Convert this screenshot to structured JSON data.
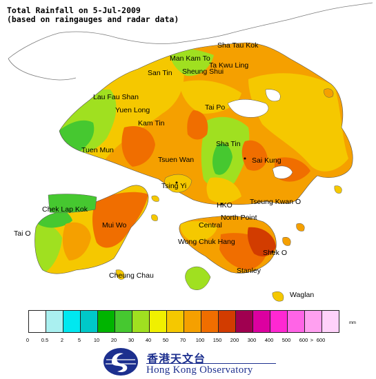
{
  "title": {
    "line1": "Total Rainfall on 5-Jul-2009",
    "line2": "(based on raingauges and radar data)"
  },
  "places": [
    {
      "id": "sha-tau-kok",
      "label": "Sha Tau Kok"
    },
    {
      "id": "man-kam-to",
      "label": "Man Kam To"
    },
    {
      "id": "ta-kwu-ling",
      "label": "Ta Kwu Ling"
    },
    {
      "id": "san-tin",
      "label": "San Tin"
    },
    {
      "id": "sheung-shui",
      "label": "Sheung Shui"
    },
    {
      "id": "lau-fau-shan",
      "label": "Lau Fau Shan"
    },
    {
      "id": "yuen-long",
      "label": "Yuen Long"
    },
    {
      "id": "tai-po",
      "label": "Tai Po"
    },
    {
      "id": "kam-tin",
      "label": "Kam Tin"
    },
    {
      "id": "sha-tin",
      "label": "Sha Tin"
    },
    {
      "id": "tuen-mun",
      "label": "Tuen Mun"
    },
    {
      "id": "sai-kung",
      "label": "Sai Kung"
    },
    {
      "id": "tsuen-wan",
      "label": "Tsuen Wan"
    },
    {
      "id": "tsing-yi",
      "label": "Tsing Yi"
    },
    {
      "id": "hko",
      "label": "HKO"
    },
    {
      "id": "tseung-kwan-o",
      "label": "Tseung Kwan O"
    },
    {
      "id": "chek-lap-kok",
      "label": "Chek Lap Kok"
    },
    {
      "id": "north-point",
      "label": "North Point"
    },
    {
      "id": "mui-wo",
      "label": "Mui Wo"
    },
    {
      "id": "central",
      "label": "Central"
    },
    {
      "id": "tai-o",
      "label": "Tai O"
    },
    {
      "id": "wong-chuk-hang",
      "label": "Wong Chuk Hang"
    },
    {
      "id": "shek-o",
      "label": "Shek O"
    },
    {
      "id": "cheung-chau",
      "label": "Cheung Chau"
    },
    {
      "id": "stanley",
      "label": "Stanley"
    },
    {
      "id": "waglan",
      "label": "Waglan"
    }
  ],
  "legend": {
    "unit": "mm",
    "colors": [
      "#ffffff",
      "#aaf0f0",
      "#00e8f0",
      "#00c8c8",
      "#00b400",
      "#46c830",
      "#a0e020",
      "#f0f000",
      "#f5c800",
      "#f5a000",
      "#f06e00",
      "#d23c00",
      "#a00050",
      "#dc00a0",
      "#ff28d2",
      "#ff64e6",
      "#ffa0f0",
      "#ffd2fa"
    ],
    "ticks": [
      "0",
      "0.5",
      "2",
      "5",
      "10",
      "20",
      "30",
      "40",
      "50",
      "70",
      "100",
      "150",
      "200",
      "300",
      "400",
      "500",
      "600",
      ">",
      "600"
    ]
  },
  "logo": {
    "chinese": "香港天文台",
    "english": "Hong Kong Observatory"
  }
}
